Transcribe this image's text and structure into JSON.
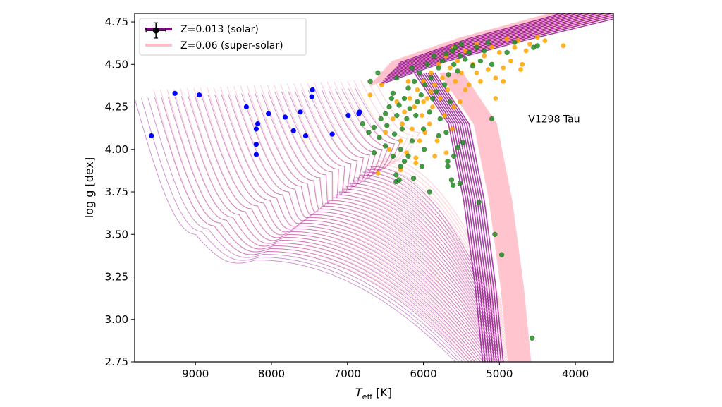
{
  "chart_data": {
    "type": "scatter",
    "xlabel_main": "T",
    "xlabel_sub": "eff",
    "xlabel_unit": " [K]",
    "ylabel": "log g [dex]",
    "xlim": [
      9800,
      3500
    ],
    "ylim": [
      4.8,
      2.75
    ],
    "x_ticks": [
      9000,
      8000,
      7000,
      6000,
      5000,
      4000
    ],
    "y_ticks": [
      2.75,
      3.0,
      3.25,
      3.5,
      3.75,
      4.0,
      4.25,
      4.5,
      4.75
    ],
    "x_tick_labels": [
      "9000",
      "8000",
      "7000",
      "6000",
      "5000",
      "4000"
    ],
    "y_tick_labels": [
      "2.75",
      "3.00",
      "3.25",
      "3.50",
      "3.75",
      "4.00",
      "4.25",
      "4.50",
      "4.75"
    ],
    "legend": {
      "placement": "top-left",
      "entries": [
        {
          "label": "Z=0.013 (solar)",
          "color": "#8b008b"
        },
        {
          "label": "Z=0.06 (super-solar)",
          "color": "#ffc0cb"
        }
      ]
    },
    "annotation": {
      "text": "V1298 Tau",
      "x": 4620,
      "y": 4.18
    },
    "error_bar": {
      "x": 9520,
      "y": 4.7,
      "xerr": 130,
      "yerr": 0.045,
      "color": "#000000"
    },
    "series": [
      {
        "color": "#0000ff",
        "points": [
          [
            9580,
            4.08
          ],
          [
            9270,
            4.33
          ],
          [
            8950,
            4.32
          ],
          [
            8330,
            4.25
          ],
          [
            8200,
            3.97
          ],
          [
            8200,
            4.03
          ],
          [
            8200,
            4.12
          ],
          [
            8180,
            4.15
          ],
          [
            8040,
            4.21
          ],
          [
            7820,
            4.19
          ],
          [
            7710,
            4.11
          ],
          [
            7620,
            4.22
          ],
          [
            7550,
            4.08
          ],
          [
            7470,
            4.31
          ],
          [
            7460,
            4.35
          ],
          [
            7200,
            4.09
          ],
          [
            6990,
            4.2
          ],
          [
            6850,
            4.21
          ],
          [
            6840,
            4.22
          ]
        ]
      },
      {
        "color": "#ffa500",
        "points": [
          [
            6600,
            3.86
          ],
          [
            6500,
            4.1
          ],
          [
            6450,
            4.0
          ],
          [
            6400,
            4.18
          ],
          [
            6350,
            4.28
          ],
          [
            6300,
            4.05
          ],
          [
            6280,
            4.15
          ],
          [
            6250,
            4.22
          ],
          [
            6220,
            3.98
          ],
          [
            6180,
            4.3
          ],
          [
            6150,
            4.12
          ],
          [
            6120,
            4.25
          ],
          [
            6100,
            3.92
          ],
          [
            6080,
            4.35
          ],
          [
            6050,
            4.05
          ],
          [
            6020,
            4.2
          ],
          [
            6000,
            4.4
          ],
          [
            5980,
            4.1
          ],
          [
            5950,
            4.3
          ],
          [
            5920,
            4.15
          ],
          [
            5900,
            4.45
          ],
          [
            5880,
            4.25
          ],
          [
            5850,
            4.38
          ],
          [
            5820,
            4.05
          ],
          [
            5800,
            4.5
          ],
          [
            5780,
            4.3
          ],
          [
            5750,
            4.42
          ],
          [
            5720,
            4.2
          ],
          [
            5700,
            4.55
          ],
          [
            5680,
            4.35
          ],
          [
            5650,
            4.48
          ],
          [
            5620,
            4.12
          ],
          [
            5600,
            4.6
          ],
          [
            5580,
            4.4
          ],
          [
            5550,
            4.52
          ],
          [
            5520,
            4.28
          ],
          [
            5500,
            4.45
          ],
          [
            5450,
            4.58
          ],
          [
            5400,
            4.38
          ],
          [
            5350,
            4.5
          ],
          [
            5300,
            4.62
          ],
          [
            5250,
            4.4
          ],
          [
            5200,
            4.55
          ],
          [
            5150,
            4.47
          ],
          [
            5100,
            4.6
          ],
          [
            5050,
            4.42
          ],
          [
            5000,
            4.57
          ],
          [
            4950,
            4.48
          ],
          [
            4900,
            4.65
          ],
          [
            4850,
            4.52
          ],
          [
            4800,
            4.6
          ],
          [
            4750,
            4.64
          ],
          [
            4700,
            4.5
          ],
          [
            4650,
            4.58
          ],
          [
            4600,
            4.62
          ],
          [
            4500,
            4.66
          ],
          [
            4400,
            4.64
          ],
          [
            4160,
            4.61
          ],
          [
            6700,
            4.32
          ],
          [
            6550,
            4.38
          ],
          [
            6200,
            4.4
          ],
          [
            6000,
            4.28
          ],
          [
            5900,
            4.34
          ],
          [
            5600,
            4.25
          ],
          [
            5450,
            4.35
          ],
          [
            5300,
            4.45
          ],
          [
            5050,
            4.3
          ],
          [
            4950,
            4.4
          ],
          [
            4720,
            4.47
          ],
          [
            5700,
            3.98
          ],
          [
            5850,
            3.96
          ],
          [
            6100,
            3.95
          ],
          [
            6300,
            3.88
          ]
        ]
      },
      {
        "color": "#228b22",
        "points": [
          [
            4570,
            2.89
          ],
          [
            4970,
            3.38
          ],
          [
            5060,
            3.5
          ],
          [
            5270,
            3.69
          ],
          [
            5520,
            3.8
          ],
          [
            5610,
            3.79
          ],
          [
            5630,
            3.82
          ],
          [
            5920,
            3.75
          ],
          [
            6360,
            3.81
          ],
          [
            6360,
            3.85
          ],
          [
            6320,
            3.82
          ],
          [
            6130,
            3.83
          ],
          [
            6300,
            3.9
          ],
          [
            6250,
            3.93
          ],
          [
            6020,
            3.9
          ],
          [
            5680,
            3.9
          ],
          [
            5680,
            3.93
          ],
          [
            5600,
            3.96
          ],
          [
            5550,
            4.01
          ],
          [
            5480,
            4.04
          ],
          [
            5100,
            4.18
          ],
          [
            6800,
            4.15
          ],
          [
            6720,
            4.1
          ],
          [
            6650,
            4.13
          ],
          [
            6580,
            4.07
          ],
          [
            6560,
            4.18
          ],
          [
            6500,
            4.21
          ],
          [
            6480,
            4.14
          ],
          [
            6450,
            4.25
          ],
          [
            6420,
            4.3
          ],
          [
            6400,
            4.33
          ],
          [
            6380,
            4.09
          ],
          [
            6350,
            4.2
          ],
          [
            6320,
            4.26
          ],
          [
            6300,
            4.0
          ],
          [
            6280,
            4.12
          ],
          [
            6250,
            4.3
          ],
          [
            6220,
            4.18
          ],
          [
            6200,
            4.36
          ],
          [
            6180,
            4.24
          ],
          [
            6150,
            4.05
          ],
          [
            6120,
            4.4
          ],
          [
            6100,
            4.2
          ],
          [
            6080,
            4.28
          ],
          [
            6050,
            4.45
          ],
          [
            6030,
            4.32
          ],
          [
            6000,
            4.12
          ],
          [
            5980,
            4.38
          ],
          [
            5950,
            4.5
          ],
          [
            5920,
            4.22
          ],
          [
            5900,
            4.42
          ],
          [
            5880,
            4.3
          ],
          [
            5860,
            4.55
          ],
          [
            5830,
            4.34
          ],
          [
            5800,
            4.48
          ],
          [
            5780,
            4.18
          ],
          [
            5750,
            4.52
          ],
          [
            5720,
            4.38
          ],
          [
            5700,
            4.56
          ],
          [
            5670,
            4.44
          ],
          [
            5650,
            4.28
          ],
          [
            5620,
            4.58
          ],
          [
            5600,
            4.5
          ],
          [
            5580,
            4.6
          ],
          [
            5550,
            4.46
          ],
          [
            5520,
            4.55
          ],
          [
            5500,
            4.62
          ],
          [
            5450,
            4.53
          ],
          [
            5400,
            4.57
          ],
          [
            5350,
            4.49
          ],
          [
            5300,
            4.6
          ],
          [
            5250,
            4.52
          ],
          [
            5200,
            4.58
          ],
          [
            5150,
            4.63
          ],
          [
            5100,
            4.5
          ],
          [
            4900,
            4.57
          ],
          [
            4800,
            4.63
          ],
          [
            4550,
            4.6
          ],
          [
            4500,
            4.61
          ],
          [
            6700,
            4.4
          ],
          [
            6600,
            4.45
          ],
          [
            6350,
            4.42
          ],
          [
            6150,
            4.48
          ],
          [
            6650,
            3.98
          ],
          [
            6400,
            3.96
          ],
          [
            6500,
            4.02
          ],
          [
            6200,
            3.96
          ],
          [
            5990,
            4.0
          ],
          [
            5800,
            4.08
          ],
          [
            5700,
            4.1
          ]
        ]
      }
    ]
  }
}
